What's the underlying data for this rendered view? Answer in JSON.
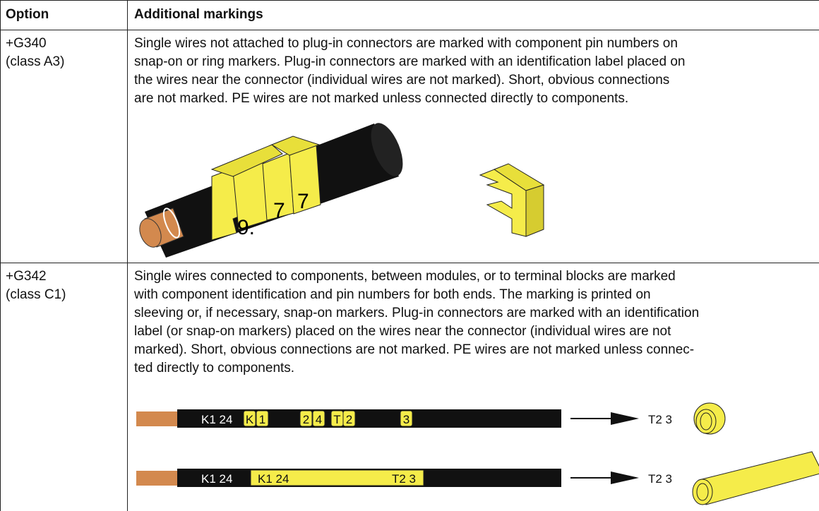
{
  "table": {
    "header": [
      "Option",
      "Additional markings"
    ],
    "rows": [
      {
        "option": [
          "+G340",
          "(class A3)"
        ],
        "description": [
          "Single wires not attached to plug-in connectors are marked with component pin numbers on",
          "snap-on or ring markers. Plug-in connectors are marked with an identification label placed on",
          "the wires near the connector (individual wires are not marked). Short, obvious connections",
          "are not marked. PE wires are not marked unless connected directly to components."
        ],
        "figure": {
          "markers": [
            "9.",
            "7",
            "7"
          ]
        }
      },
      {
        "option": [
          "+G342",
          "(class C1)"
        ],
        "description": [
          "Single wires connected to components, between modules, or to terminal blocks are marked",
          "with component identification and pin numbers for both ends. The marking is printed on",
          "sleeving or, if necessary, snap-on markers. Plug-in connectors are marked with an identification",
          "label (or snap-on markers) placed on the wires near the connector (individual wires are not",
          "marked). Short, obvious connections are not marked. PE wires are not marked unless connec-",
          "ted directly to components."
        ],
        "figure": {
          "cable_1": {
            "sleeve_label": "K1 24",
            "markers": [
              "K",
              "1",
              "2",
              "4",
              "T",
              "2",
              "3"
            ],
            "end_label": "T2 3"
          },
          "cable_2": {
            "sleeve_label": "K1 24",
            "marker_start": "K1 24",
            "marker_end": "T2 3",
            "end_label": "T2 3"
          }
        }
      }
    ]
  }
}
